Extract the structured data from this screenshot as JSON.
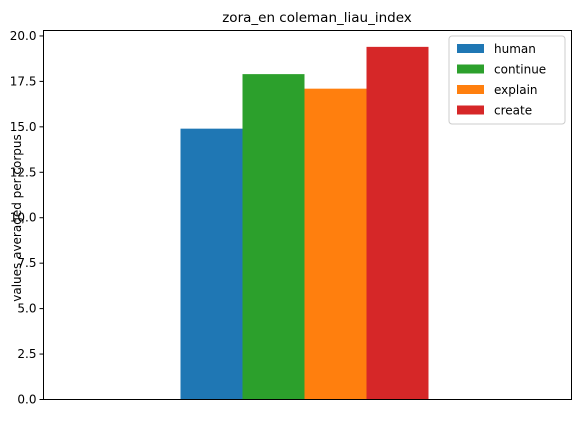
{
  "chart_data": {
    "type": "bar",
    "title": "zora_en coleman_liau_index",
    "xlabel": "",
    "ylabel": "values averaged per corpus",
    "categories": [
      ""
    ],
    "series": [
      {
        "name": "human",
        "color": "#1f77b4",
        "values": [
          14.9
        ]
      },
      {
        "name": "continue",
        "color": "#2ca02c",
        "values": [
          17.9
        ]
      },
      {
        "name": "explain",
        "color": "#ff7f0e",
        "values": [
          17.1
        ]
      },
      {
        "name": "create",
        "color": "#d62728",
        "values": [
          19.4
        ]
      }
    ],
    "ylim": [
      0,
      20.3
    ],
    "yticks": [
      "0.0",
      "2.5",
      "5.0",
      "7.5",
      "10.0",
      "12.5",
      "15.0",
      "17.5",
      "20.0"
    ],
    "grid": false,
    "legend_position": "top-right"
  }
}
